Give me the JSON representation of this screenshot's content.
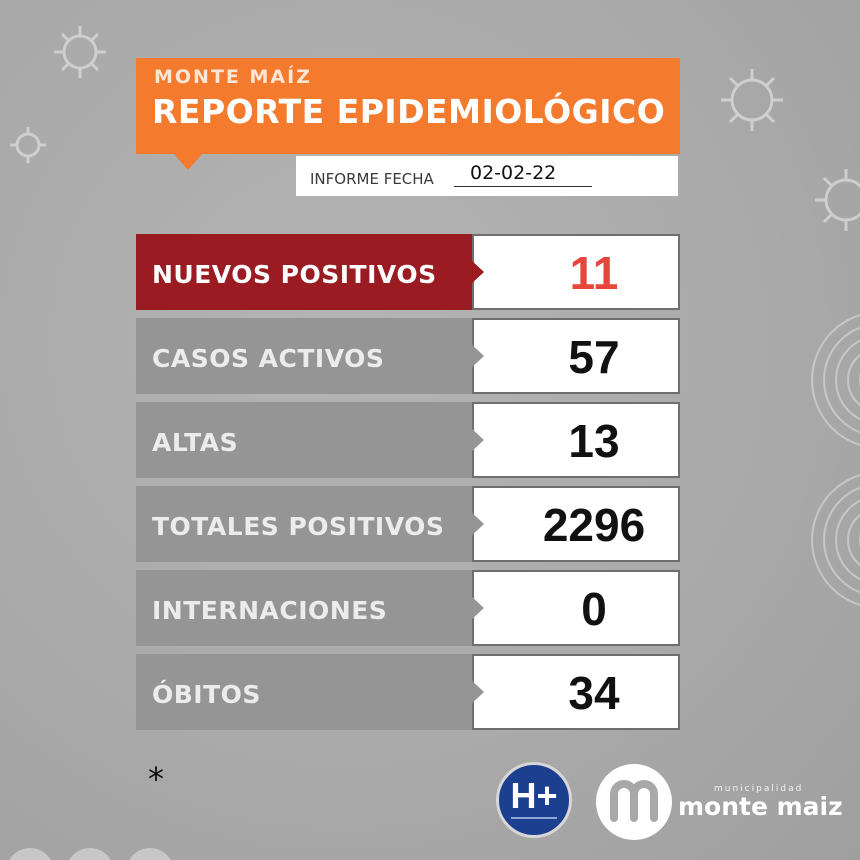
{
  "header": {
    "subtitle": "MONTE MAÍZ",
    "title": "REPORTE EPIDEMIOLÓGICO",
    "accent_color": "#f47a2e"
  },
  "report_date": {
    "label": "INFORME FECHA",
    "value": "02-02-22"
  },
  "rows": [
    {
      "label": "NUEVOS POSITIVOS",
      "value": "11"
    },
    {
      "label": "CASOS ACTIVOS",
      "value": "57"
    },
    {
      "label": "ALTAS",
      "value": "13"
    },
    {
      "label": "TOTALES POSITIVOS",
      "value": "2296"
    },
    {
      "label": "INTERNACIONES",
      "value": "0"
    },
    {
      "label": "ÓBITOS",
      "value": "34"
    }
  ],
  "colors": {
    "highlight_row": "#9a1b22",
    "highlight_value": "#e8453c",
    "row_label_bg": "#959595"
  },
  "footer": {
    "footnote": "*",
    "hplus_logo": "H+",
    "municipality_small": "municipalidad",
    "municipality_name": "monte maiz"
  }
}
